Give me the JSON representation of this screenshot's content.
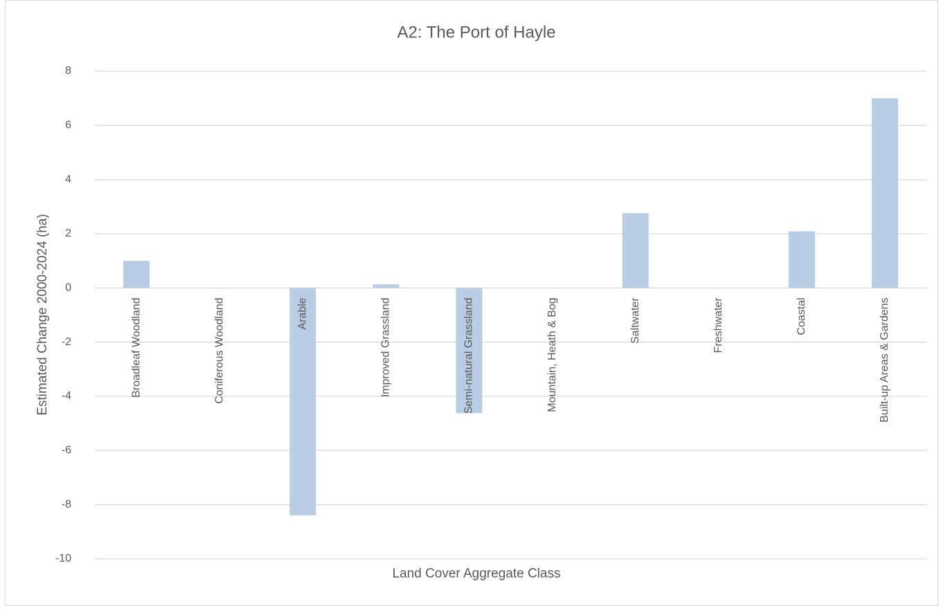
{
  "chart_data": {
    "type": "bar",
    "title": "A2: The Port of Hayle",
    "x_label": "Land Cover Aggregate Class",
    "y_label": "Estimated Change 2000-2024 (ha)",
    "categories": [
      "Broadleaf Woodland",
      "Coniferous Woodland",
      "Arable",
      "Improved Grassland",
      "Semi-natural Grassland",
      "Mountain, Heath & Bog",
      "Saltwater",
      "Freshwater",
      "Coastal",
      "Built-up Areas & Gardens"
    ],
    "values": [
      1.0,
      0,
      -8.4,
      0.13,
      -4.62,
      0,
      2.76,
      0,
      2.09,
      7.0
    ],
    "color": "#b9cde5",
    "ylim": [
      -10,
      8
    ],
    "yticks": [
      -10,
      -8,
      -6,
      -4,
      -2,
      0,
      2,
      4,
      6,
      8
    ],
    "grid": true
  }
}
